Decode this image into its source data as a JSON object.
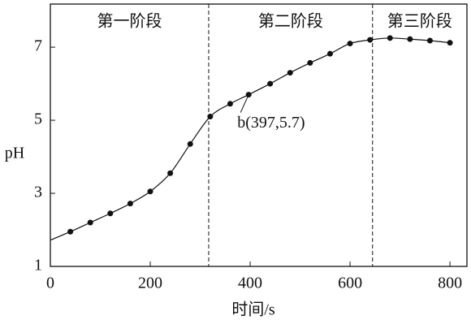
{
  "chart_data": {
    "type": "line",
    "x_label": "时间/s",
    "y_label": "pH",
    "curve": {
      "x": [
        0,
        40,
        80,
        120,
        160,
        200,
        240,
        280,
        320,
        360,
        397,
        440,
        480,
        520,
        560,
        600,
        640,
        680,
        720,
        760,
        800
      ],
      "y": [
        1.72,
        1.95,
        2.2,
        2.45,
        2.72,
        3.05,
        3.55,
        4.35,
        5.1,
        5.45,
        5.7,
        6.0,
        6.3,
        6.57,
        6.82,
        7.1,
        7.2,
        7.25,
        7.22,
        7.18,
        7.12
      ]
    },
    "points": {
      "x": [
        40,
        80,
        120,
        160,
        200,
        240,
        280,
        320,
        360,
        397,
        440,
        480,
        520,
        560,
        600,
        640,
        680,
        720,
        760,
        800
      ],
      "y": [
        1.95,
        2.2,
        2.45,
        2.72,
        3.05,
        3.55,
        4.35,
        5.1,
        5.45,
        5.7,
        6.0,
        6.3,
        6.57,
        6.82,
        7.1,
        7.2,
        7.25,
        7.22,
        7.18,
        7.12
      ]
    },
    "color": "#111111",
    "dividers": [
      317,
      645
    ],
    "regions": [
      "第一阶段",
      "第二阶段",
      "第三阶段"
    ],
    "annotation": {
      "text": "b(397,5.7)",
      "x": 397,
      "y": 5.7
    },
    "xlim": [
      0,
      834
    ],
    "ylim": [
      1,
      8.18
    ],
    "xticks": [
      0,
      200,
      400,
      600,
      800
    ],
    "yticks": [
      1,
      3,
      5,
      7
    ]
  }
}
